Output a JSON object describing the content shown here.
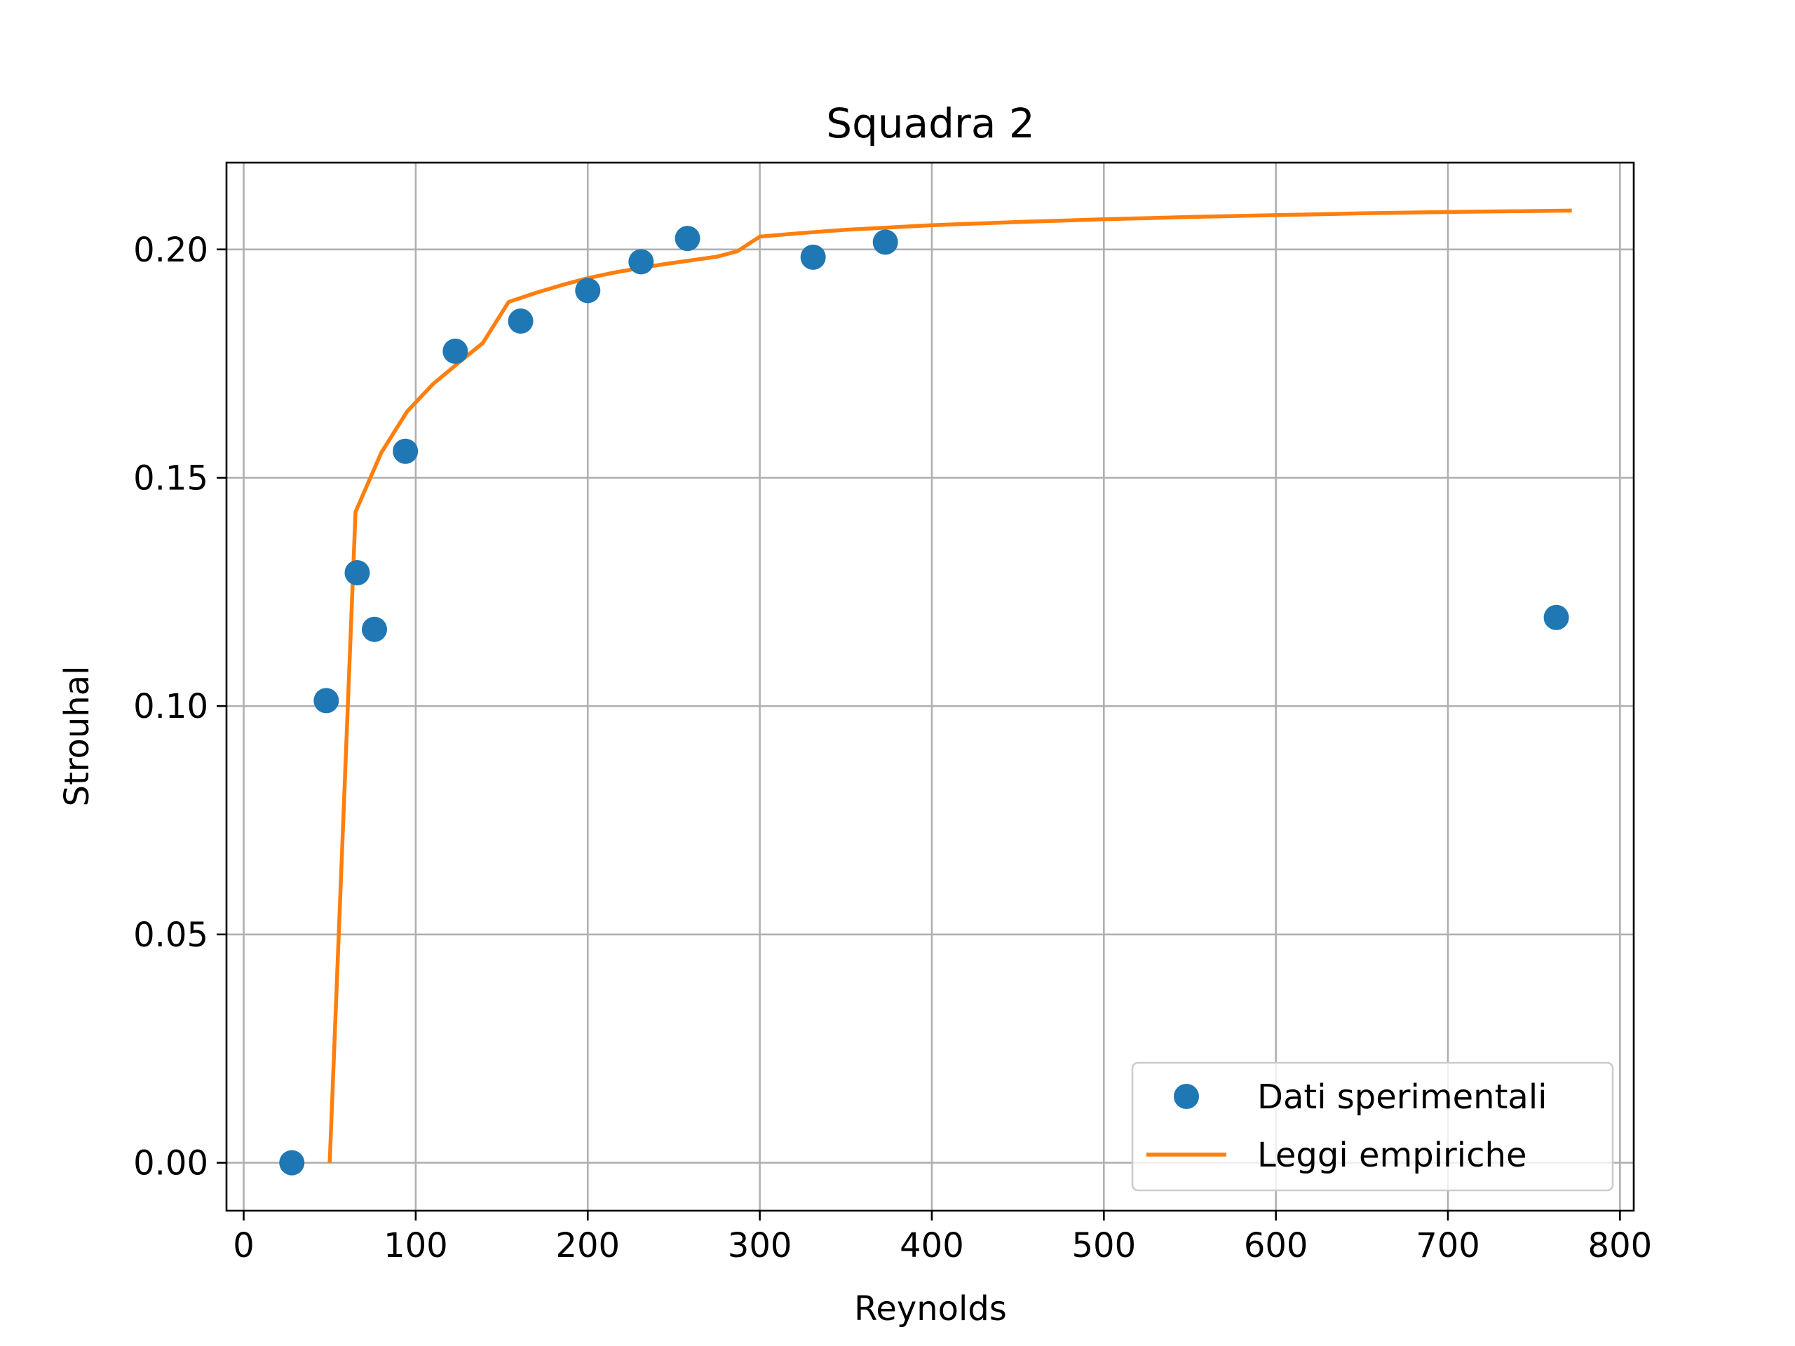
{
  "chart_data": {
    "type": "scatter",
    "title": "Squadra 2",
    "xlabel": "Reynolds",
    "ylabel": "Strouhal",
    "xlim": [
      -10,
      808
    ],
    "ylim": [
      -0.0105,
      0.219
    ],
    "xticks": [
      0,
      100,
      200,
      300,
      400,
      500,
      600,
      700,
      800
    ],
    "xtick_labels": [
      "0",
      "100",
      "200",
      "300",
      "400",
      "500",
      "600",
      "700",
      "800"
    ],
    "yticks": [
      0.0,
      0.05,
      0.1,
      0.15,
      0.2
    ],
    "ytick_labels": [
      "0.00",
      "0.05",
      "0.10",
      "0.15",
      "0.20"
    ],
    "grid": true,
    "legend_position": "lower-right",
    "series": [
      {
        "name": "Dati sperimentali",
        "kind": "scatter",
        "color": "#1f77b4",
        "x": [
          28,
          48,
          66,
          76,
          94,
          123,
          161,
          200,
          231,
          258,
          331,
          373,
          763
        ],
        "y": [
          0.0,
          0.1012,
          0.1292,
          0.1168,
          0.1558,
          0.1777,
          0.1843,
          0.191,
          0.1973,
          0.2024,
          0.1983,
          0.2016,
          0.1194
        ]
      },
      {
        "name": "Leggi empiriche",
        "kind": "line",
        "color": "#ff7f0e",
        "x": [
          50,
          65,
          80,
          95,
          110,
          125,
          139,
          154,
          170,
          185,
          200,
          215,
          230,
          245,
          260,
          275,
          287,
          300,
          325,
          350,
          400,
          450,
          500,
          550,
          600,
          650,
          700,
          772
        ],
        "y": [
          0.0,
          0.1425,
          0.1555,
          0.1645,
          0.1705,
          0.1752,
          0.1795,
          0.1885,
          0.1905,
          0.1922,
          0.1937,
          0.1949,
          0.1959,
          0.1968,
          0.1976,
          0.1984,
          0.1996,
          0.2028,
          0.2036,
          0.2043,
          0.2053,
          0.206,
          0.2066,
          0.2071,
          0.2075,
          0.2079,
          0.2082,
          0.2085
        ]
      }
    ]
  }
}
